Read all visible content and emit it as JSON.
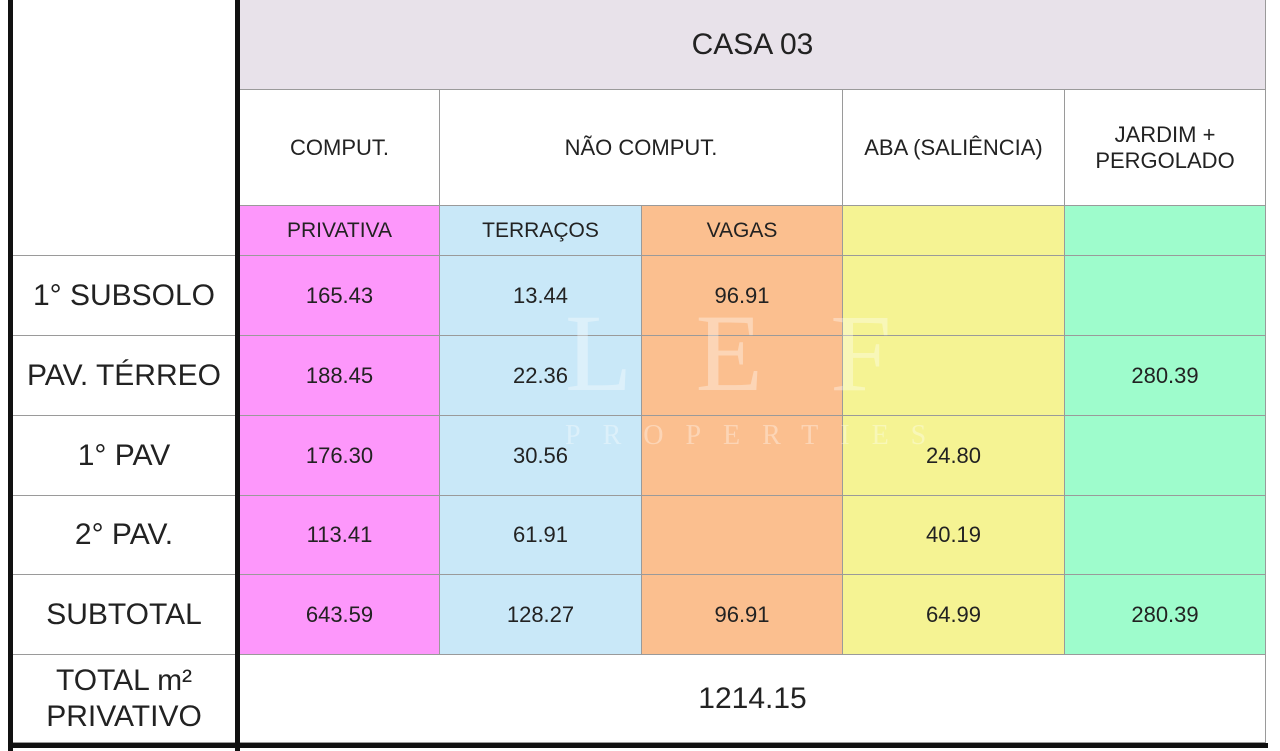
{
  "header": {
    "title": "CASA 03"
  },
  "columns": [
    "COMPUT.",
    "NÃO COMPUT.",
    "ABA (SALIÊNCIA)",
    "JARDIM + PERGOLADO"
  ],
  "subcolumns": [
    "PRIVATIVA",
    "TERRAÇOS",
    "VAGAS"
  ],
  "rows": [
    {
      "label": "1° SUBSOLO",
      "cells": [
        "165.43",
        "13.44",
        "96.91",
        null,
        null
      ]
    },
    {
      "label": "PAV. TÉRREO",
      "cells": [
        "188.45",
        "22.36",
        null,
        null,
        "280.39"
      ]
    },
    {
      "label": "1° PAV",
      "cells": [
        "176.30",
        "30.56",
        null,
        "24.80",
        null
      ]
    },
    {
      "label": "2° PAV.",
      "cells": [
        "113.41",
        "61.91",
        null,
        "40.19",
        null
      ]
    },
    {
      "label": "SUBTOTAL",
      "cells": [
        "643.59",
        "128.27",
        "96.91",
        "64.99",
        "280.39"
      ]
    }
  ],
  "total": {
    "label": "TOTAL m² PRIVATIVO",
    "value": "1214.15"
  },
  "watermark": {
    "brand": "L E F",
    "tagline": "PROPERTIES"
  }
}
